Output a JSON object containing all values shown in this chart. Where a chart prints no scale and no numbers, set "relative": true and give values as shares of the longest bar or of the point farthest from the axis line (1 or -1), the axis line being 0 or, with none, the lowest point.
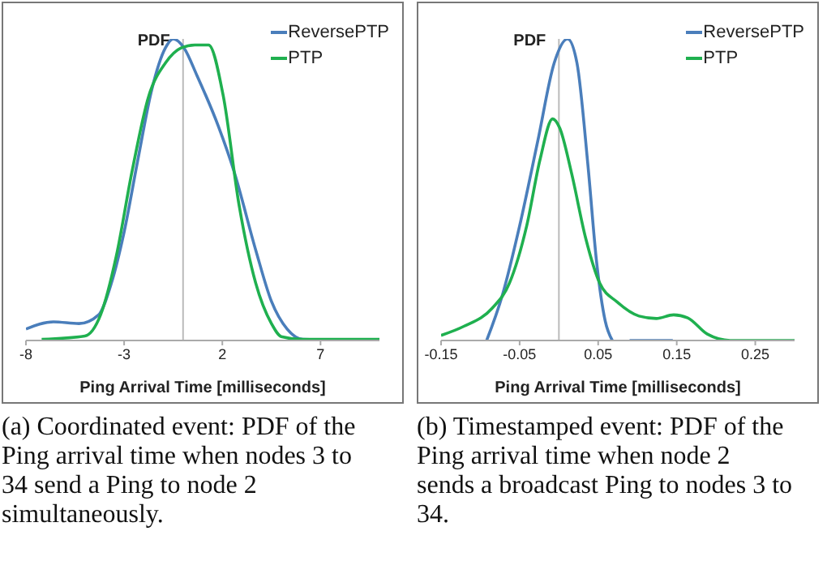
{
  "chart_data": [
    {
      "type": "line",
      "relative": true,
      "xlabel": "Ping Arrival Time [milliseconds]",
      "ylabel": "PDF",
      "xlim": [
        -8,
        10
      ],
      "xticks": [
        -8,
        -3,
        2,
        7
      ],
      "legend": "top right",
      "annotations": [
        "(a) Coordinated event: PDF of the Ping arrival time when nodes 3 to 34 send a Ping to node 2 simultaneously."
      ],
      "series": [
        {
          "name": "ReversePTP",
          "color": "#4a7ebb",
          "x": [
            -8,
            -6.6,
            -5.3,
            -4.3,
            -3.65,
            -3,
            -2.3,
            -1.6,
            -0.9,
            -0.5,
            0.05,
            0.7,
            1.8,
            2.6,
            3.7,
            4.5,
            5.3,
            6.1,
            10
          ],
          "values": [
            0.038,
            0.062,
            0.056,
            0.085,
            0.19,
            0.36,
            0.6,
            0.83,
            0.97,
            1,
            0.97,
            0.88,
            0.71,
            0.56,
            0.3,
            0.13,
            0.038,
            0.004,
            0
          ]
        },
        {
          "name": "PTP",
          "color": "#1fb04f",
          "x": [
            -7.2,
            -5,
            -4.2,
            -3.4,
            -2.6,
            -1.75,
            -0.9,
            -0.1,
            0.6,
            1.3,
            2.05,
            2.85,
            3.7,
            4.5,
            5,
            6.1,
            10
          ],
          "values": [
            0.004,
            0.015,
            0.085,
            0.28,
            0.56,
            0.81,
            0.92,
            0.97,
            0.98,
            0.98,
            0.81,
            0.45,
            0.19,
            0.056,
            0.013,
            0.004,
            0.004
          ]
        }
      ]
    },
    {
      "type": "line",
      "relative": true,
      "xlabel": "Ping Arrival Time [milliseconds]",
      "ylabel": "PDF",
      "xlim": [
        -0.15,
        0.3
      ],
      "xticks": [
        -0.15,
        -0.05,
        0.05,
        0.15,
        0.25
      ],
      "legend": "top right",
      "annotations": [
        "(b) Timestamped event: PDF of the Ping arrival time when node 2 sends a broadcast Ping to nodes 3 to 34."
      ],
      "series": [
        {
          "name": "ReversePTP",
          "color": "#4a7ebb",
          "x": [
            -0.092,
            -0.072,
            -0.05,
            -0.027,
            -0.006,
            0.011,
            0.023,
            0.037,
            0.048,
            0.059,
            0.068,
            0.08,
            0.09,
            0.145
          ],
          "values": [
            0,
            0.15,
            0.38,
            0.66,
            0.92,
            1,
            0.92,
            0.58,
            0.26,
            0.064,
            0,
            null,
            0,
            0
          ]
        },
        {
          "name": "PTP",
          "color": "#1fb04f",
          "x": [
            -0.15,
            -0.121,
            -0.085,
            -0.063,
            -0.041,
            -0.024,
            -0.008,
            0.001,
            0.016,
            0.034,
            0.052,
            0.074,
            0.102,
            0.124,
            0.146,
            0.164,
            0.189,
            0.218,
            0.3
          ],
          "values": [
            0.017,
            0.047,
            0.107,
            0.19,
            0.38,
            0.6,
            0.735,
            0.705,
            0.556,
            0.34,
            0.19,
            0.128,
            0.081,
            0.073,
            0.085,
            0.075,
            0.021,
            0,
            0
          ]
        }
      ]
    }
  ]
}
